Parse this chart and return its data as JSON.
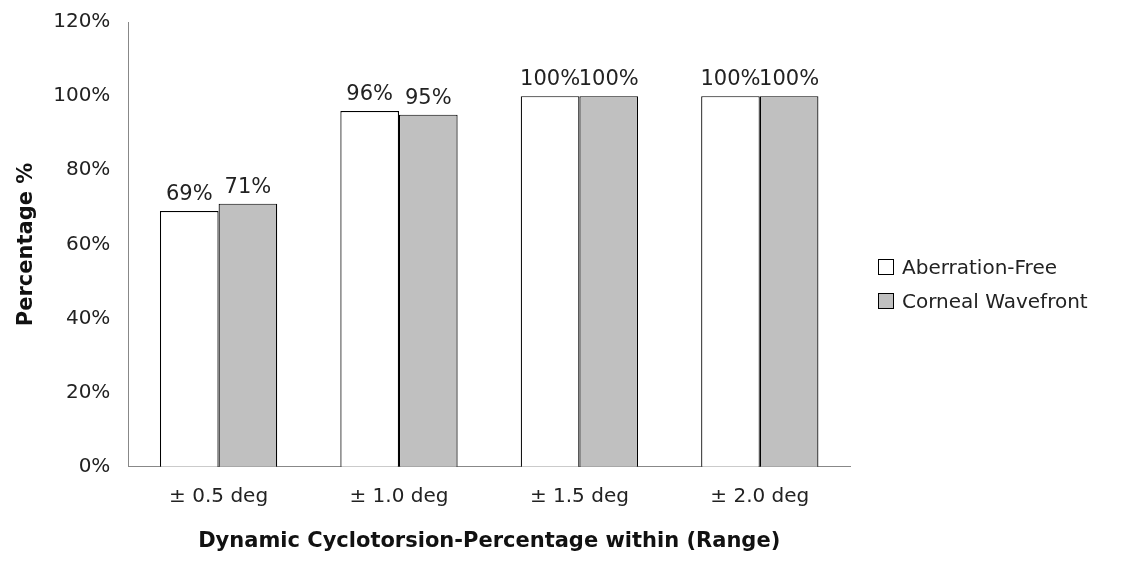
{
  "chart_data": {
    "type": "bar",
    "xlabel": "Dynamic Cyclotorsion-Percentage within (Range)",
    "ylabel": "Percentage %",
    "categories": [
      "± 0.5 deg",
      "± 1.0 deg",
      "± 1.5 deg",
      "± 2.0 deg"
    ],
    "series": [
      {
        "name": "Aberration-Free",
        "color": "#ffffff",
        "values": [
          69,
          96,
          100,
          100
        ],
        "value_labels": [
          "69%",
          "96%",
          "100%",
          "100%"
        ]
      },
      {
        "name": "Corneal Wavefront",
        "color": "#c0c0c0",
        "values": [
          71,
          95,
          100,
          100
        ],
        "value_labels": [
          "71%",
          "95%",
          "100%",
          "100%"
        ]
      }
    ],
    "ylim": [
      0,
      120
    ],
    "yticks": [
      {
        "value": 0,
        "label": "0%"
      },
      {
        "value": 20,
        "label": "20%"
      },
      {
        "value": 40,
        "label": "40%"
      },
      {
        "value": 60,
        "label": "60%"
      },
      {
        "value": 80,
        "label": "80%"
      },
      {
        "value": 100,
        "label": "100%"
      },
      {
        "value": 120,
        "label": "120%"
      }
    ],
    "grid": false,
    "legend": "right"
  }
}
